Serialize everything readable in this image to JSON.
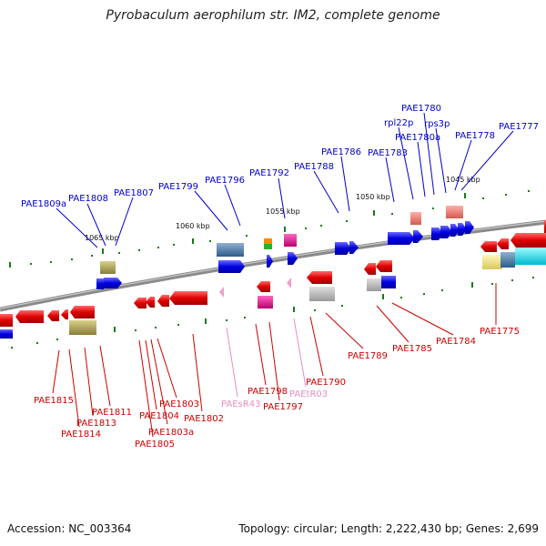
{
  "title": "Pyrobaculum aerophilum str. IM2, complete genome",
  "accession": "Accession: NC_003364",
  "summary": "Topology: circular; Length: 2,222,430 bp; Genes: 2,699",
  "colors": {
    "forward_label": "#0000cc",
    "reverse_label": "#cc0000",
    "rna_label": "#e58fc0",
    "tick": "#1a7a1a",
    "backbone": "#888888"
  },
  "scale_ticks": [
    "1065 kbp",
    "1060 kbp",
    "1055 kbp",
    "1050 kbp",
    "1045 kbp"
  ],
  "forward_labels": [
    "PAE1809a",
    "PAE1808",
    "PAE1807",
    "PAE1799",
    "PAE1796",
    "PAE1792",
    "PAE1788",
    "PAE1786",
    "PAE1783",
    "rpl22p",
    "PAE1780a",
    "PAE1780",
    "rps3p",
    "PAE1778",
    "PAE1777"
  ],
  "reverse_labels": [
    "PAE1815",
    "PAE1814",
    "PAE1813",
    "PAE1811",
    "PAE1805",
    "PAE1804",
    "PAE1803a",
    "PAE1803",
    "PAE1802",
    "PAEsR43",
    "PAE1798",
    "PAE1797",
    "PAEtR03",
    "PAE1790",
    "PAE1789",
    "PAE1785",
    "PAE1784",
    "PAE1775"
  ]
}
